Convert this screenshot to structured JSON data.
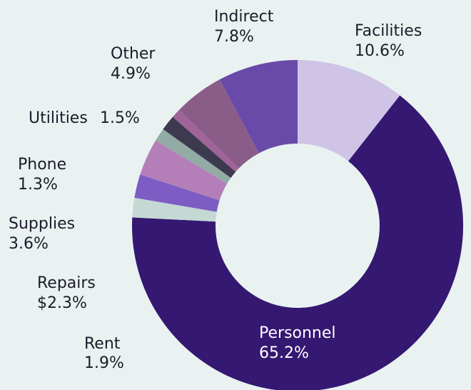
{
  "chart_data": {
    "type": "donut",
    "categories": [
      "Facilities",
      "Personnel",
      "Rent",
      "Repairs",
      "Supplies",
      "Phone",
      "Utilities",
      null,
      "Other",
      "Indirect"
    ],
    "values": [
      10.6,
      65.2,
      1.9,
      2.3,
      3.6,
      1.3,
      1.5,
      0.9,
      4.9,
      7.8
    ],
    "value_labels": [
      "10.6%",
      "65.2%",
      "1.9%",
      "$2.3%",
      "3.6%",
      "1.3%",
      "1.5%",
      null,
      "4.9%",
      "7.8%"
    ],
    "colors": [
      "#d0c4e6",
      "#351872",
      "#c4d9d4",
      "#7d5cc4",
      "#b47fb8",
      "#93aba5",
      "#3d3a4f",
      "#a0649a",
      "#8a5d88",
      "#6a4aa8"
    ]
  }
}
